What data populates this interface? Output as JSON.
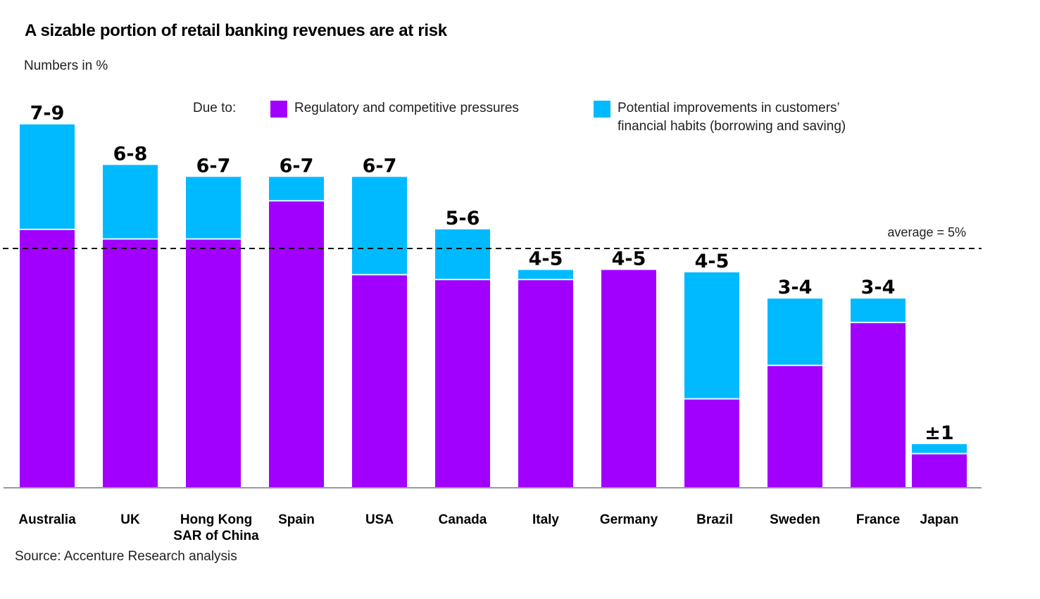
{
  "header": {
    "title": "A sizable portion of retail banking revenues are at risk",
    "subtitle": "Numbers in %"
  },
  "legend": {
    "lead": "Due to:",
    "items": [
      {
        "label": "Regulatory and competitive pressures",
        "color": "#a100ff"
      },
      {
        "label": "Potential improvements in customers’\nfinancial habits (borrowing and saving)",
        "color": "#00baff"
      }
    ]
  },
  "footer": {
    "source": "Source: Accenture Research analysis"
  },
  "chart_data": {
    "type": "bar",
    "stacked": true,
    "title": "A sizable portion of retail banking revenues are at risk",
    "subtitle": "Numbers in %",
    "xlabel": "",
    "ylabel": "",
    "ylim": [
      0,
      8
    ],
    "grid": false,
    "legend_position": "top",
    "categories": [
      [
        "Australia"
      ],
      [
        "UK"
      ],
      [
        "Hong Kong",
        "SAR of China"
      ],
      [
        "Spain"
      ],
      [
        "USA"
      ],
      [
        "Canada"
      ],
      [
        "Italy"
      ],
      [
        "Germany"
      ],
      [
        "Brazil"
      ],
      [
        "Sweden"
      ],
      [
        "France"
      ],
      [
        "Japan"
      ]
    ],
    "series": [
      {
        "name": "Regulatory and competitive pressures",
        "color": "#a100ff",
        "values": [
          5.4,
          5.2,
          5.2,
          6.0,
          4.45,
          4.35,
          4.35,
          4.55,
          1.85,
          2.55,
          3.45,
          0.7
        ]
      },
      {
        "name": "Potential improvements in customers’ financial habits (borrowing and saving)",
        "color": "#00baff",
        "values": [
          2.2,
          1.55,
          1.3,
          0.5,
          2.05,
          1.05,
          0.2,
          0.0,
          2.65,
          1.4,
          0.5,
          0.2
        ]
      }
    ],
    "data_labels": [
      "7-9",
      "6-8",
      "6-7",
      "6-7",
      "6-7",
      "5-6",
      "4-5",
      "4-5",
      "4-5",
      "3-4",
      "3-4",
      "±1"
    ],
    "reference_line": {
      "value": 5,
      "label": "average = 5%",
      "style": "dashed"
    }
  }
}
